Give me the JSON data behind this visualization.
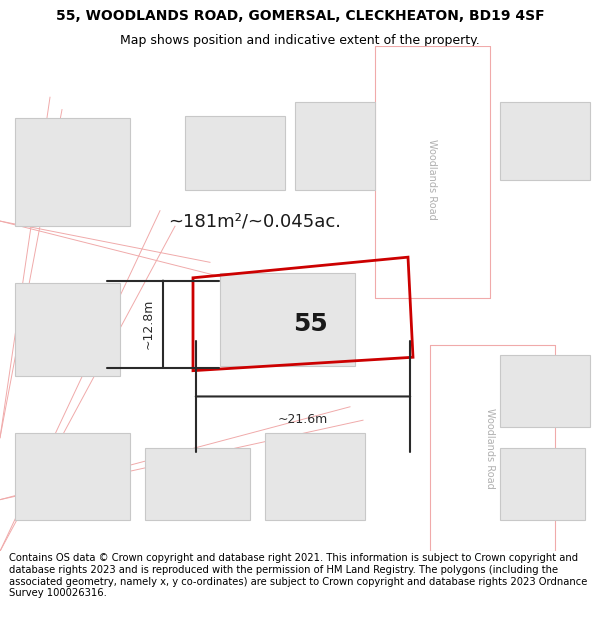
{
  "title": "55, WOODLANDS ROAD, GOMERSAL, CLECKHEATON, BD19 4SF",
  "subtitle": "Map shows position and indicative extent of the property.",
  "footer": "Contains OS data © Crown copyright and database right 2021. This information is subject to Crown copyright and database rights 2023 and is reproduced with the permission of HM Land Registry. The polygons (including the associated geometry, namely x, y co-ordinates) are subject to Crown copyright and database rights 2023 Ordnance Survey 100026316.",
  "map_bg": "#f5f5f5",
  "building_fill": "#e6e6e6",
  "building_stroke": "#c8c8c8",
  "road_band_fill": "#ffffff",
  "road_line_color": "#f0aaaa",
  "plot_stroke": "#cc0000",
  "dimension_color": "#2a2a2a",
  "road_label_color": "#b0b0b0",
  "area_text": "~181m²/~0.045ac.",
  "number_text": "55",
  "dim_width": "~21.6m",
  "dim_height": "~12.8m",
  "woodlands_road_label": "Woodlands Road",
  "title_fontsize": 10,
  "subtitle_fontsize": 9,
  "footer_fontsize": 7.2
}
